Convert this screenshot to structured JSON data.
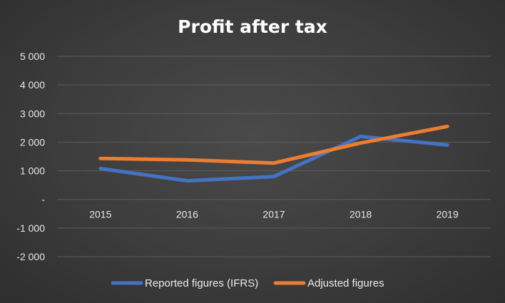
{
  "chart_data": {
    "type": "line",
    "title": "Profit after tax",
    "xlabel": "",
    "ylabel": "",
    "categories": [
      "2015",
      "2016",
      "2017",
      "2018",
      "2019"
    ],
    "y_ticks": [
      "5 000",
      "4 000",
      "3 000",
      "2 000",
      "1 000",
      "-",
      "-1 000",
      "-2 000"
    ],
    "y_tick_values": [
      5000,
      4000,
      3000,
      2000,
      1000,
      0,
      -1000,
      -2000
    ],
    "ylim": [
      -2000,
      5000
    ],
    "grid": true,
    "legend_position": "bottom",
    "series": [
      {
        "name": "Reported figures (IFRS)",
        "color": "#4472c4",
        "values": [
          1080,
          650,
          800,
          2200,
          1900
        ]
      },
      {
        "name": "Adjusted figures",
        "color": "#ed7d31",
        "values": [
          1430,
          1380,
          1270,
          1970,
          2550
        ]
      }
    ]
  }
}
